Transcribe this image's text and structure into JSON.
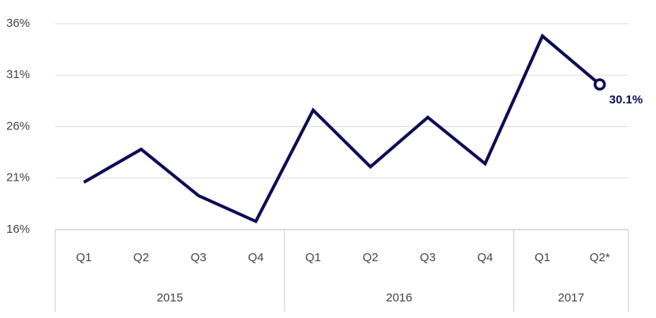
{
  "chart_data": {
    "type": "line",
    "groups": [
      {
        "name": "2015",
        "categories": [
          "Q1",
          "Q2",
          "Q3",
          "Q4"
        ]
      },
      {
        "name": "2016",
        "categories": [
          "Q1",
          "Q2",
          "Q3",
          "Q4"
        ]
      },
      {
        "name": "2017",
        "categories": [
          "Q1",
          "Q2*"
        ]
      }
    ],
    "values": [
      20.6,
      23.8,
      19.3,
      16.8,
      27.6,
      22.1,
      26.9,
      22.4,
      34.8,
      30.1
    ],
    "value_labels": [
      null,
      null,
      null,
      null,
      null,
      null,
      null,
      null,
      null,
      "30.1%"
    ],
    "color": "#0d0d55",
    "ylim": [
      16,
      36
    ],
    "yticks": [
      {
        "value": 16,
        "label": "16%"
      },
      {
        "value": 21,
        "label": "21%"
      },
      {
        "value": 26,
        "label": "26%"
      },
      {
        "value": 31,
        "label": "31%"
      },
      {
        "value": 36,
        "label": "36%"
      }
    ],
    "grid": true
  }
}
